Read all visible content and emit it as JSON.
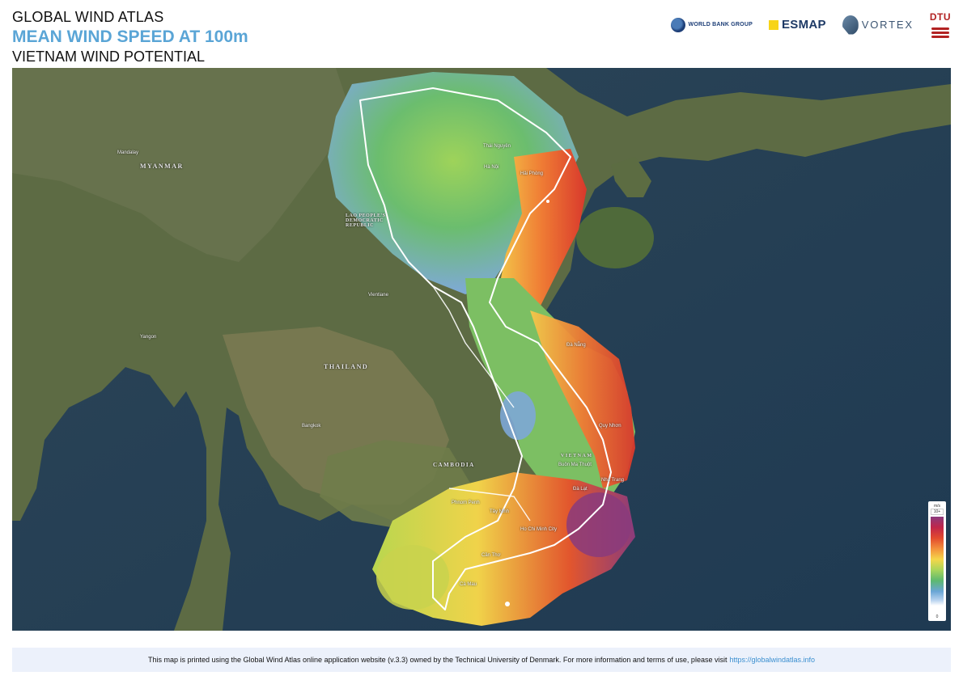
{
  "header": {
    "title": "GLOBAL WIND ATLAS",
    "subtitle": "MEAN WIND SPEED AT 100m",
    "region": "VIETNAM WIND POTENTIAL"
  },
  "logos": {
    "world_bank": "WORLD BANK GROUP",
    "esmap": "ESMAP",
    "vortex": "VORTEX",
    "dtu": "DTU"
  },
  "legend": {
    "unit": "m/s",
    "max": "10+",
    "min": "0",
    "colors": [
      "#8b3a7e",
      "#c0264a",
      "#e24a2e",
      "#f3903c",
      "#f5d64a",
      "#a9d55b",
      "#5db870",
      "#6aa6d6",
      "#b9d3ef",
      "#ffffff"
    ]
  },
  "map": {
    "country_labels": {
      "myanmar": "MYANMAR",
      "laos": "LAO PEOPLE'S DEMOCRATIC REPUBLIC",
      "thailand": "THAILAND",
      "cambodia": "CAMBODIA",
      "vietnam": "VIETNAM"
    },
    "city_labels": {
      "thai_nguyen": "Thái Nguyên",
      "hanoi": "Hà Nội",
      "da_nang": "Đà Nẵng",
      "buon_ma_thuot": "Buôn Ma Thuột",
      "da_lat": "Đà Lạt",
      "phnom_penh": "Phnom Penh",
      "tay_ninh": "Tây Ninh",
      "ho_chi_minh": "Ho Chi Minh City",
      "can_tho": "Cần Thơ",
      "ca_mau": "Cà Mau",
      "bangkok": "Bangkok",
      "vientiane": "Vientiane",
      "mandalay": "Mandalay",
      "yangon": "Yangon",
      "hai_phong": "Hải Phòng",
      "qui_nhon": "Quy Nhơn",
      "nha_trang": "Nha Trang"
    }
  },
  "footer": {
    "text": "This map is printed using the Global Wind Atlas online application website (v.3.3) owned by the Technical University of Denmark. For more information and terms of use, please visit",
    "link": "https://globalwindatlas.info"
  }
}
